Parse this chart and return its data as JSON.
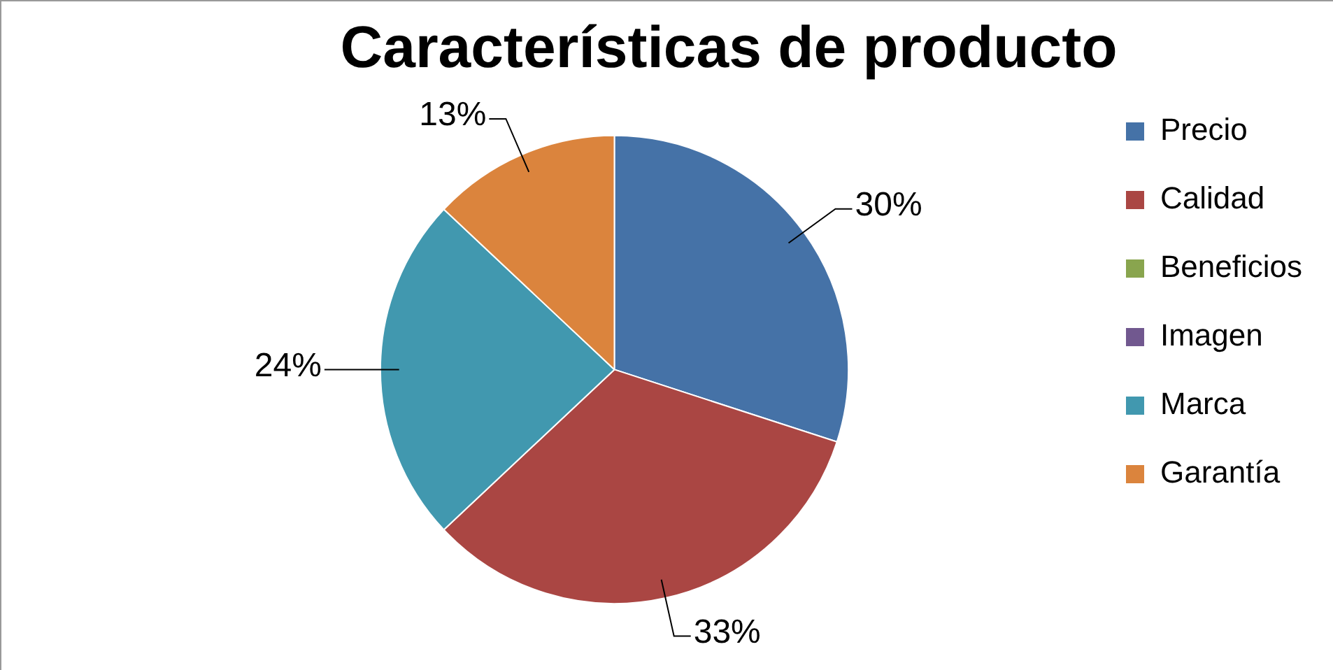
{
  "chart_data": {
    "type": "pie",
    "title": "Características de producto",
    "categories": [
      "Precio",
      "Calidad",
      "Beneficios",
      "Imagen",
      "Marca",
      "Garantía"
    ],
    "values": [
      30,
      33,
      0,
      0,
      24,
      13
    ],
    "colors": [
      "#4572a7",
      "#aa4643",
      "#89a54e",
      "#71588f",
      "#4198af",
      "#db843d"
    ],
    "value_labels": [
      "30%",
      "33%",
      null,
      null,
      "24%",
      "13%"
    ],
    "legend": "right"
  }
}
